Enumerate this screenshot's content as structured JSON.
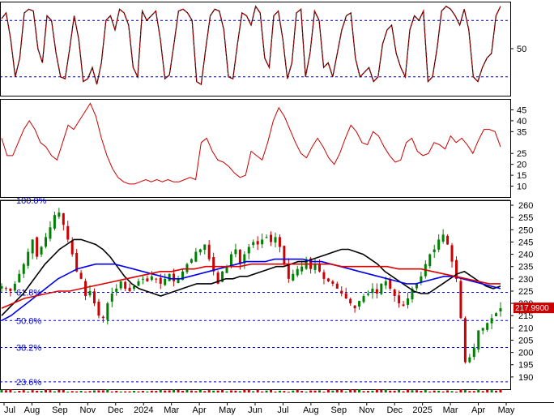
{
  "chart_data": [
    {
      "type": "line",
      "panel": "stochastic",
      "y_ticks": [
        "50"
      ],
      "ylim": [
        0,
        100
      ],
      "ref_levels": [
        80,
        20
      ],
      "series": [
        {
          "style": "dashed-red-over-black",
          "color": "#cc0000",
          "values": [
            82,
            88,
            60,
            20,
            40,
            88,
            92,
            90,
            50,
            35,
            85,
            80,
            45,
            20,
            18,
            50,
            85,
            60,
            15,
            18,
            30,
            12,
            35,
            80,
            85,
            70,
            92,
            88,
            75,
            30,
            20,
            90,
            80,
            85,
            90,
            60,
            18,
            22,
            55,
            90,
            92,
            88,
            80,
            15,
            12,
            50,
            85,
            92,
            90,
            70,
            20,
            18,
            55,
            88,
            85,
            75,
            95,
            88,
            40,
            30,
            85,
            90,
            60,
            18,
            35,
            88,
            92,
            20,
            45,
            90,
            80,
            30,
            35,
            20,
            45,
            70,
            85,
            88,
            40,
            20,
            25,
            30,
            15,
            20,
            55,
            70,
            75,
            45,
            30,
            20,
            70,
            85,
            80,
            90,
            15,
            20,
            50,
            90,
            95,
            92,
            85,
            75,
            92,
            70,
            20,
            15,
            30,
            40,
            45,
            85,
            95
          ]
        }
      ],
      "colors": {
        "line": "#cc0000",
        "ref": "#000080"
      }
    },
    {
      "type": "line",
      "panel": "adx",
      "y_ticks": [
        "45",
        "40",
        "35",
        "25",
        "20",
        "15",
        "10"
      ],
      "ylim": [
        5,
        50
      ],
      "series": [
        {
          "color": "#cc0000",
          "values": [
            32,
            24,
            24,
            30,
            36,
            40,
            36,
            30,
            28,
            24,
            22,
            30,
            38,
            36,
            40,
            44,
            48,
            42,
            32,
            24,
            18,
            14,
            12,
            11,
            11,
            12,
            13,
            12,
            13,
            12,
            13,
            12,
            12,
            13,
            14,
            13,
            30,
            32,
            26,
            22,
            21,
            19,
            16,
            14,
            15,
            26,
            24,
            22,
            30,
            40,
            46,
            42,
            36,
            30,
            25,
            23,
            28,
            32,
            28,
            23,
            20,
            25,
            32,
            38,
            35,
            30,
            29,
            35,
            33,
            28,
            24,
            21,
            22,
            30,
            32,
            26,
            24,
            25,
            30,
            29,
            27,
            33,
            30,
            32,
            29,
            25,
            31,
            36,
            36,
            35,
            28
          ]
        }
      ]
    },
    {
      "type": "candlestick",
      "panel": "price",
      "x_tick_labels": [
        "Jul",
        "Aug",
        "Sep",
        "Nov",
        "Dec",
        "2024",
        "Mar",
        "Apr",
        "May",
        "Jun",
        "Jul",
        "Aug",
        "Sep",
        "Nov",
        "Dec",
        "2025",
        "Mar",
        "Apr",
        "May"
      ],
      "y_ticks": [
        "260",
        "255",
        "250",
        "245",
        "240",
        "235",
        "230",
        "225",
        "220",
        "215",
        "210",
        "205",
        "200",
        "195",
        "190"
      ],
      "ylim": [
        185,
        262
      ],
      "last_price": "217.9900",
      "fib_levels": [
        {
          "label": "100.0%",
          "value": 262
        },
        {
          "label": "61.8%",
          "value": 224.5
        },
        {
          "label": "50.0%",
          "value": 213
        },
        {
          "label": "38.2%",
          "value": 202
        },
        {
          "label": "23.6%",
          "value": 188
        }
      ],
      "closes": [
        227,
        226,
        225,
        228,
        232,
        236,
        241,
        246,
        239,
        243,
        247,
        251,
        256,
        257,
        252,
        246,
        240,
        233,
        230,
        223,
        225,
        220,
        215,
        214,
        220,
        224,
        226,
        229,
        226,
        225,
        227,
        229,
        230,
        229,
        231,
        230,
        228,
        230,
        232,
        229,
        230,
        233,
        236,
        238,
        241,
        242,
        244,
        238,
        233,
        228,
        233,
        235,
        240,
        242,
        236,
        240,
        243,
        245,
        244,
        246,
        247,
        245,
        247,
        243,
        236,
        230,
        232,
        234,
        235,
        238,
        234,
        236,
        233,
        230,
        229,
        228,
        226,
        224,
        222,
        220,
        218,
        221,
        223,
        224,
        226,
        224,
        228,
        229,
        226,
        223,
        220,
        219,
        222,
        226,
        228,
        231,
        236,
        240,
        242,
        246,
        248,
        244,
        237,
        230,
        214,
        196,
        198,
        202,
        209,
        210,
        212,
        214,
        216,
        218
      ],
      "series": [
        {
          "name": "MA-black",
          "color": "#000000",
          "values": [
            215,
            218,
            221,
            224,
            228,
            232,
            236,
            239,
            242,
            244,
            246,
            246,
            245,
            244,
            242,
            239,
            235,
            231,
            228,
            226,
            225,
            224,
            223,
            224,
            225,
            226,
            227,
            228,
            228,
            228,
            229,
            230,
            230,
            231,
            231,
            232,
            233,
            234,
            235,
            235,
            236,
            237,
            237,
            238,
            239,
            240,
            241,
            242,
            242,
            241,
            240,
            238,
            236,
            233,
            231,
            229,
            227,
            225,
            224,
            224,
            226,
            228,
            230,
            232,
            233,
            231,
            229,
            227,
            226,
            227
          ]
        },
        {
          "name": "MA-blue",
          "color": "#0000ee",
          "values": [
            213,
            215,
            218,
            221,
            224,
            227,
            230,
            232,
            234,
            235,
            236,
            236,
            236,
            235,
            234,
            233,
            232,
            231,
            230,
            230,
            231,
            232,
            233,
            234,
            235,
            236,
            237,
            237,
            237,
            238,
            238,
            238,
            238,
            237,
            237,
            236,
            235,
            234,
            233,
            232,
            231,
            230,
            229,
            228,
            228,
            229,
            230,
            231,
            231,
            230,
            229,
            228,
            227,
            226
          ]
        },
        {
          "name": "MA-red",
          "color": "#dd0000",
          "values": [
            218,
            220,
            222,
            223,
            224,
            225,
            225,
            226,
            227,
            228,
            229,
            230,
            231,
            232,
            233,
            233,
            234,
            234,
            235,
            235,
            235,
            235,
            236,
            236,
            236,
            236,
            236,
            236,
            236,
            236,
            235,
            235,
            235,
            235,
            235,
            234,
            234,
            234,
            233,
            232,
            231,
            230,
            229,
            228,
            228
          ]
        }
      ],
      "colors": {
        "up": "#008000",
        "down": "#cc0000",
        "fib": "#0000cc"
      }
    }
  ]
}
